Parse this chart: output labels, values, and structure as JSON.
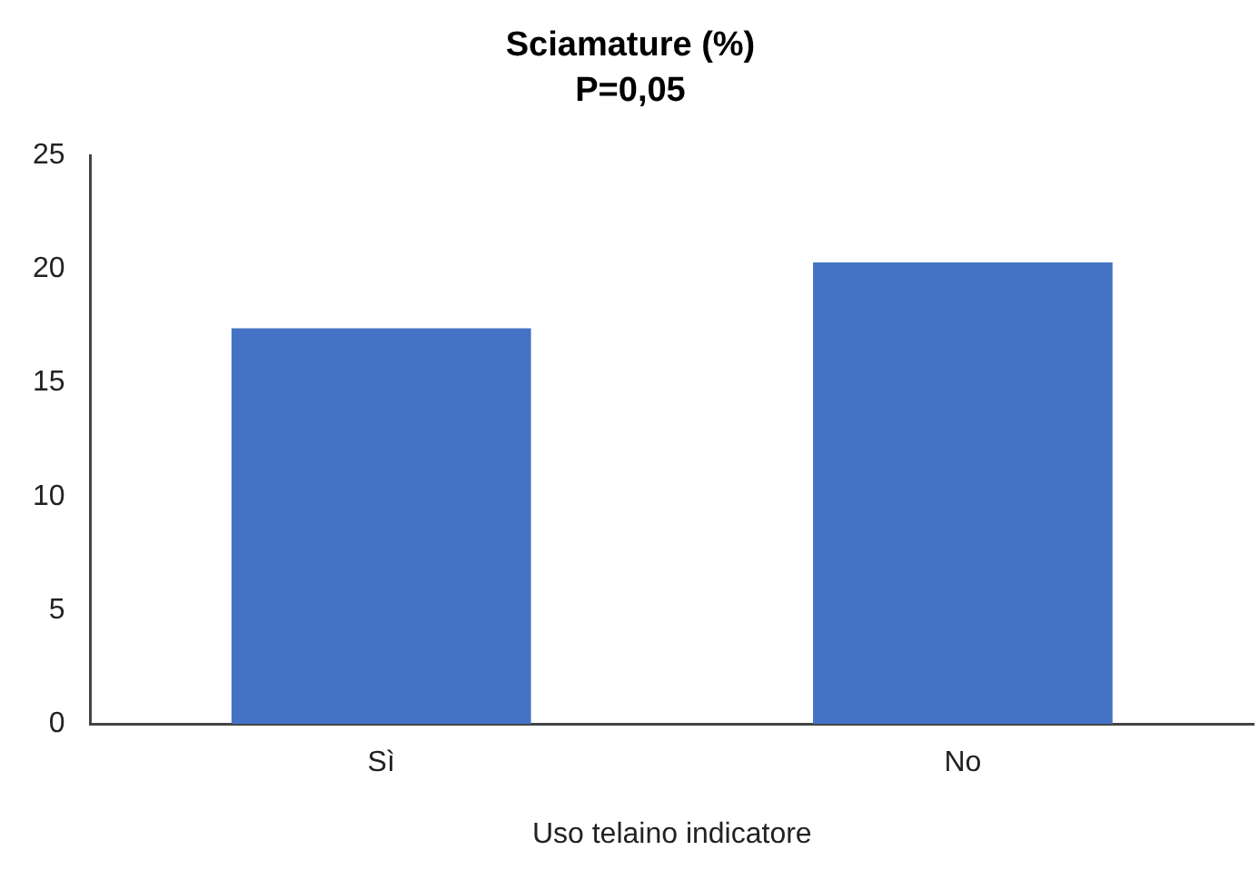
{
  "chart_data": {
    "type": "bar",
    "title": "Sciamature (%)",
    "subtitle": "P=0,05",
    "xlabel": "Uso telaino indicatore",
    "categories": [
      "Sì",
      "No"
    ],
    "values": [
      17.4,
      20.3
    ],
    "color": "#4472c4",
    "ylim": [
      0,
      25
    ],
    "yticks": [
      0,
      5,
      10,
      15,
      20,
      25
    ],
    "grid": false,
    "legend": false
  }
}
